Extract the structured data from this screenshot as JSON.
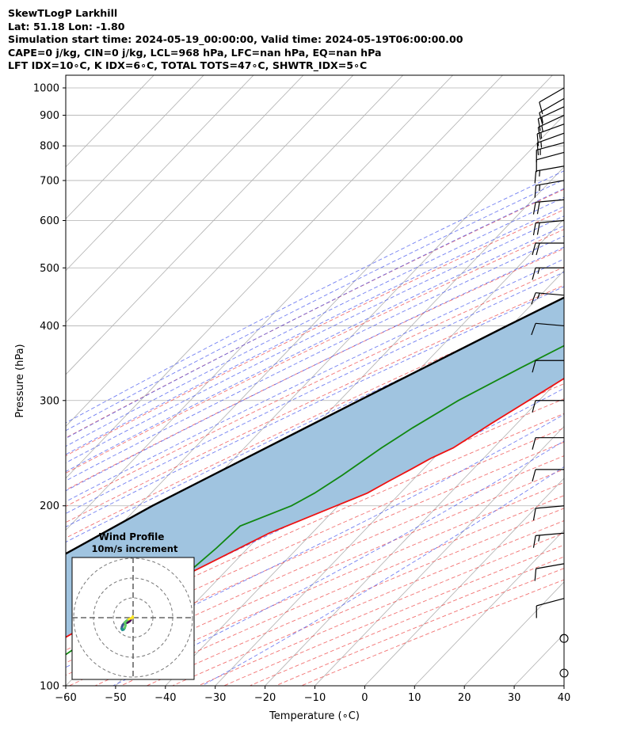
{
  "header": {
    "title": "SkewTLogP Larkhill",
    "location": "Lat: 51.18   Lon: -1.80",
    "simulation": "Simulation start time: 2024-05-19_00:00:00, Valid time: 2024-05-19T06:00:00.00",
    "convective": "CAPE=0 j/kg, CIN=0 j/kg, LCL=968 hPa, LFC=nan hPa, EQ=nan hPa",
    "indices": "LFT IDX=10∘C, K IDX=6∘C, TOTAL TOTS=47∘C, SHWTR_IDX=5∘C"
  },
  "chart_data": [
    {
      "type": "line",
      "subtype": "skew-t log-p",
      "xlabel": "Temperature (∘C)",
      "ylabel": "Pressure (hPa)",
      "xlim": [
        -60,
        40
      ],
      "ylim": [
        1050,
        100
      ],
      "y_scale": "log",
      "x_ticks": [
        -60,
        -50,
        -40,
        -30,
        -20,
        -10,
        0,
        10,
        20,
        30,
        40
      ],
      "x_tick_labels": [
        "−60",
        "−50",
        "−40",
        "−30",
        "−20",
        "−10",
        "0",
        "10",
        "20",
        "30",
        "40"
      ],
      "y_ticks": [
        1000,
        900,
        800,
        700,
        600,
        500,
        400,
        300,
        200,
        100
      ],
      "grid": true,
      "series": [
        {
          "role": "temperature",
          "color": "#ee1111",
          "points": [
            [
              1000,
              9.2
            ],
            [
              970,
              11.6
            ],
            [
              940,
              13.6
            ],
            [
              900,
              14.6
            ],
            [
              850,
              13.1
            ],
            [
              800,
              10.1
            ],
            [
              700,
              7.2
            ],
            [
              650,
              4.5
            ],
            [
              600,
              1.1
            ],
            [
              550,
              -2.1
            ],
            [
              500,
              -4.7
            ],
            [
              450,
              -7.9
            ],
            [
              400,
              -12.2
            ],
            [
              350,
              -16.9
            ],
            [
              300,
              -22.1
            ],
            [
              275,
              -25.1
            ],
            [
              250,
              -28.1
            ],
            [
              240,
              -30.6
            ],
            [
              230,
              -32.5
            ],
            [
              220,
              -34.6
            ],
            [
              210,
              -36.6
            ],
            [
              200,
              -40.4
            ],
            [
              180,
              -48.6
            ],
            [
              150,
              -58.4
            ],
            [
              130,
              -66.3
            ],
            [
              115,
              -71.3
            ],
            [
              100,
              -77.2
            ]
          ]
        },
        {
          "role": "dewpoint",
          "color": "#118811",
          "points": [
            [
              1000,
              7.7
            ],
            [
              985,
              8.3
            ],
            [
              970,
              9.3
            ],
            [
              950,
              9.3
            ],
            [
              900,
              6.8
            ],
            [
              870,
              4.7
            ],
            [
              850,
              2.4
            ],
            [
              820,
              -1.6
            ],
            [
              800,
              -4.5
            ],
            [
              760,
              -10.5
            ],
            [
              740,
              -13.0
            ],
            [
              700,
              -17.5
            ],
            [
              650,
              -17.1
            ],
            [
              600,
              -13.0
            ],
            [
              550,
              -17.6
            ],
            [
              520,
              -21.4
            ],
            [
              500,
              -24.3
            ],
            [
              470,
              -24.6
            ],
            [
              450,
              -23.5
            ],
            [
              420,
              -23.1
            ],
            [
              400,
              -22.6
            ],
            [
              370,
              -25.6
            ],
            [
              340,
              -30.0
            ],
            [
              300,
              -36.2
            ],
            [
              270,
              -40.1
            ],
            [
              250,
              -42.5
            ],
            [
              225,
              -45.1
            ],
            [
              210,
              -47.2
            ],
            [
              200,
              -49.4
            ],
            [
              185,
              -55.8
            ],
            [
              170,
              -56.3
            ],
            [
              150,
              -57.6
            ],
            [
              125,
              -63.3
            ],
            [
              100,
              -69.2
            ]
          ]
        },
        {
          "role": "parcel",
          "color": "#000000",
          "points": [
            [
              1000,
              9.5
            ],
            [
              968,
              8.7
            ],
            [
              900,
              4.6
            ],
            [
              800,
              -2.2
            ],
            [
              700,
              -9.8
            ],
            [
              600,
              -18.2
            ],
            [
              500,
              -28.5
            ],
            [
              400,
              -40.8
            ],
            [
              300,
              -56.1
            ],
            [
              200,
              -77.3
            ],
            [
              150,
              -90.0
            ],
            [
              100,
              -106.1
            ]
          ]
        }
      ],
      "wind_barbs": {
        "pressures": [
          1000,
          960,
          930,
          900,
          870,
          840,
          810,
          780,
          740,
          700,
          650,
          600,
          550,
          500,
          450,
          400,
          350,
          300,
          260,
          230,
          200,
          180,
          160,
          140,
          120,
          105
        ],
        "direction_deg": [
          240,
          240,
          245,
          245,
          250,
          250,
          255,
          255,
          260,
          260,
          265,
          265,
          270,
          270,
          275,
          275,
          270,
          270,
          270,
          270,
          265,
          265,
          260,
          255,
          0,
          0
        ],
        "speed_kt": [
          12,
          12,
          13,
          14,
          15,
          14,
          13,
          12,
          14,
          16,
          20,
          20,
          19,
          15,
          13,
          12,
          10,
          10,
          11,
          12,
          11,
          13,
          12,
          11,
          0,
          0
        ]
      },
      "hodograph": {
        "title": "Wind Profile",
        "subtitle": "10m/s increment",
        "u": [
          -1.2,
          -1.8,
          -2.4,
          -3.0,
          -3.8,
          -4.6,
          -5.2,
          -5.6,
          -5.8,
          -5.4,
          -4.8,
          -4.2,
          -3.8,
          -4.2,
          -3.4,
          -2.2,
          -0.9,
          -0.1,
          -0.2
        ],
        "v": [
          -1.2,
          -1.8,
          -2.2,
          -2.5,
          -2.8,
          -3.0,
          -3.6,
          -4.6,
          -5.6,
          -6.2,
          -6.0,
          -5.2,
          -3.8,
          -2.4,
          -1.6,
          -0.8,
          -0.2,
          0.0,
          0.6
        ]
      }
    }
  ]
}
